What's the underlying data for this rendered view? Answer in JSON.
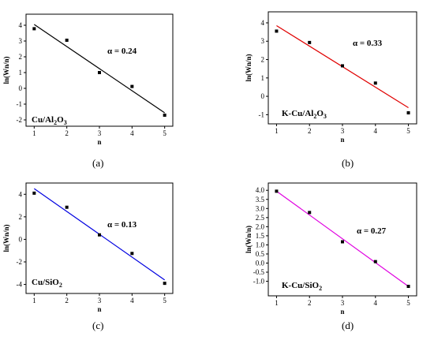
{
  "chart_data": [
    {
      "type": "scatter",
      "panel_label": "(a)",
      "sample_label": {
        "base": "Cu/Al",
        "sub1": "2",
        "mid": "O",
        "sub2": "3"
      },
      "annotation": "α = 0.24",
      "xlabel": "n",
      "ylabel": "ln(Wn/n)",
      "xlim": [
        0.75,
        5.25
      ],
      "ylim": [
        -2.4,
        4.7
      ],
      "xticks": [
        1,
        2,
        3,
        4,
        5
      ],
      "yticks": [
        -2,
        -1,
        0,
        1,
        2,
        3,
        4
      ],
      "x": [
        1,
        2,
        3,
        4,
        5
      ],
      "y": [
        3.78,
        3.05,
        1.0,
        0.12,
        -1.7
      ],
      "fit": {
        "x": [
          1,
          5
        ],
        "y": [
          4.05,
          -1.55
        ],
        "color": "#000000"
      }
    },
    {
      "type": "scatter",
      "panel_label": "(b)",
      "sample_label": {
        "base": "K-Cu/Al",
        "sub1": "2",
        "mid": "O",
        "sub2": "3"
      },
      "annotation": "α = 0.33",
      "xlabel": "n",
      "ylabel": "ln(Wn/n)",
      "xlim": [
        0.75,
        5.25
      ],
      "ylim": [
        -1.5,
        4.6
      ],
      "xticks": [
        1,
        2,
        3,
        4,
        5
      ],
      "yticks": [
        -1,
        0,
        1,
        2,
        3,
        4
      ],
      "x": [
        1,
        2,
        3,
        4,
        5
      ],
      "y": [
        3.55,
        2.93,
        1.66,
        0.72,
        -0.9
      ],
      "fit": {
        "x": [
          1,
          5
        ],
        "y": [
          3.85,
          -0.62
        ],
        "color": "#e00000"
      }
    },
    {
      "type": "scatter",
      "panel_label": "(c)",
      "sample_label": {
        "base": "Cu/SiO",
        "sub1": "2",
        "mid": "",
        "sub2": ""
      },
      "annotation": "α = 0.13",
      "xlabel": "n",
      "ylabel": "ln(Wn/n)",
      "xlim": [
        0.75,
        5.25
      ],
      "ylim": [
        -4.8,
        5.0
      ],
      "xticks": [
        1,
        2,
        3,
        4,
        5
      ],
      "yticks": [
        -4,
        -2,
        0,
        2,
        4
      ],
      "x": [
        1,
        2,
        3,
        4,
        5
      ],
      "y": [
        4.1,
        2.85,
        0.4,
        -1.25,
        -3.9
      ],
      "fit": {
        "x": [
          1,
          5
        ],
        "y": [
          4.5,
          -3.6
        ],
        "color": "#0000e0"
      }
    },
    {
      "type": "scatter",
      "panel_label": "(d)",
      "sample_label": {
        "base": "K-Cu/SiO",
        "sub1": "2",
        "mid": "",
        "sub2": ""
      },
      "annotation": "α = 0.27",
      "xlabel": "n",
      "ylabel": "ln(Wn/n)",
      "xlim": [
        0.75,
        5.25
      ],
      "ylim": [
        -1.8,
        4.4
      ],
      "xticks": [
        1,
        2,
        3,
        4,
        5
      ],
      "yticks": [
        -1.0,
        -0.5,
        0.0,
        0.5,
        1.0,
        1.5,
        2.0,
        2.5,
        3.0,
        3.5,
        4.0
      ],
      "x": [
        1,
        2,
        3,
        4,
        5
      ],
      "y": [
        3.95,
        2.78,
        1.17,
        0.08,
        -1.28
      ],
      "fit": {
        "x": [
          1,
          5
        ],
        "y": [
          3.95,
          -1.28
        ],
        "color": "#e000e0"
      }
    }
  ]
}
